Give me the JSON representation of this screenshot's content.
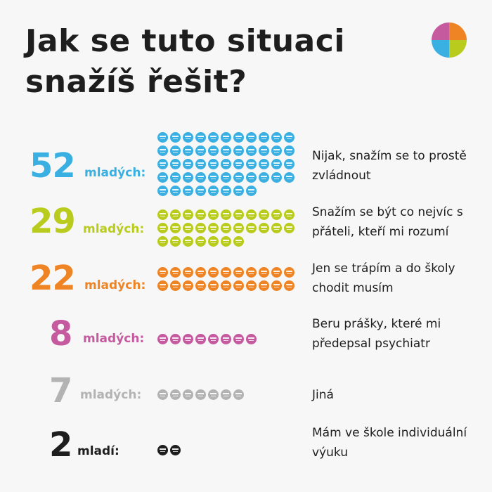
{
  "title": "Jak se tuto situaci snažíš řešit?",
  "chart_data": {
    "type": "pictogram",
    "title": "Jak se tuto situaci snažíš řešit?",
    "rows": [
      {
        "value": 52,
        "unit": "mladých:",
        "label": "Nijak, snažím se to prostě zvládnout",
        "color": "#3ab0e2"
      },
      {
        "value": 29,
        "unit": "mladých:",
        "label": "Snažím se být co nejvíc s přáteli, kteří mi rozumí",
        "color": "#b9cc1e"
      },
      {
        "value": 22,
        "unit": "mladých:",
        "label": "Jen se trápím a do školy chodit musím",
        "color": "#ee8424"
      },
      {
        "value": 8,
        "unit": "mladých:",
        "label": "Beru prášky, které mi předepsal psychiatr",
        "color": "#c55a9f"
      },
      {
        "value": 7,
        "unit": "mladých:",
        "label": "Jiná",
        "color": "#b3b3b3"
      },
      {
        "value": 2,
        "unit": "mladí:",
        "label": "Mám ve škole individuální výuku",
        "color": "#1e1e1e"
      }
    ]
  },
  "colors": {
    "background": "#f7f7f7",
    "text": "#1e1e1e",
    "logo": [
      "#c55a9f",
      "#ee8424",
      "#b9cc1e",
      "#3ab0e2"
    ]
  },
  "logo": {
    "icon": "pinwheel-logo-icon"
  }
}
